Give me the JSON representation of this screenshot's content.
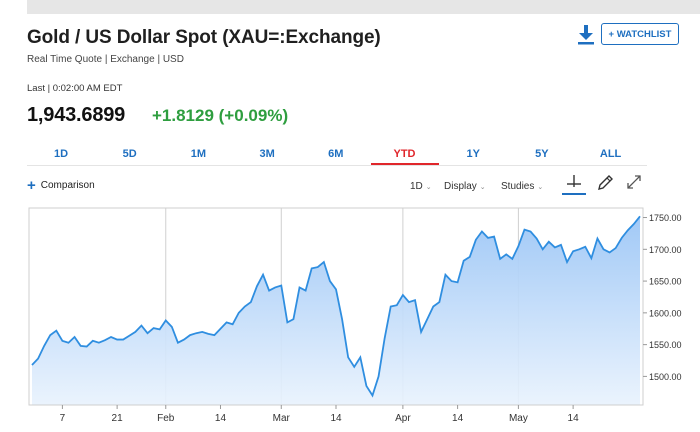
{
  "header": {
    "title": "Gold / US Dollar Spot (XAU=:Exchange)",
    "subtitle": "Real Time Quote | Exchange | USD",
    "watchlist_label": "+ WATCHLIST"
  },
  "quote": {
    "last_label": "Last | 0:02:00 AM EDT",
    "price": "1,943.6899",
    "change": "+1.8129 (+0.09%)",
    "change_color": "#2e9e3f"
  },
  "ranges": [
    {
      "label": "1D",
      "active": false
    },
    {
      "label": "5D",
      "active": false
    },
    {
      "label": "1M",
      "active": false
    },
    {
      "label": "3M",
      "active": false
    },
    {
      "label": "6M",
      "active": false
    },
    {
      "label": "YTD",
      "active": true
    },
    {
      "label": "1Y",
      "active": false
    },
    {
      "label": "5Y",
      "active": false
    },
    {
      "label": "ALL",
      "active": false
    }
  ],
  "toolbar": {
    "comparison_label": "Comparison",
    "interval_label": "1D",
    "display_label": "Display",
    "studies_label": "Studies"
  },
  "icons": {
    "download": "download-icon",
    "crosshair": "crosshair-icon",
    "draw": "pencil-icon",
    "expand": "expand-icon"
  },
  "chart_data": {
    "type": "area",
    "y_ticks": [
      "1500.00",
      "1550.00",
      "1600.00",
      "1650.00",
      "1700.00",
      "1750.00"
    ],
    "y_tick_values": [
      1500,
      1550,
      1600,
      1650,
      1700,
      1750
    ],
    "ylim": [
      1455,
      1765
    ],
    "x_ticks": [
      {
        "label": "7",
        "index": 5
      },
      {
        "label": "21",
        "index": 14
      },
      {
        "label": "Feb",
        "index": 22
      },
      {
        "label": "14",
        "index": 31
      },
      {
        "label": "Mar",
        "index": 41
      },
      {
        "label": "14",
        "index": 50
      },
      {
        "label": "Apr",
        "index": 61
      },
      {
        "label": "14",
        "index": 70
      },
      {
        "label": "May",
        "index": 80
      },
      {
        "label": "14",
        "index": 89
      }
    ],
    "vertical_gridline_indices": [
      22,
      41,
      61,
      80
    ],
    "line_color": "#2f8ee0",
    "fill_color": "#bcd9fa",
    "values": [
      1518,
      1528,
      1548,
      1565,
      1572,
      1556,
      1553,
      1562,
      1548,
      1547,
      1556,
      1553,
      1557,
      1562,
      1558,
      1558,
      1564,
      1570,
      1580,
      1568,
      1576,
      1574,
      1588,
      1578,
      1553,
      1558,
      1565,
      1568,
      1570,
      1567,
      1565,
      1575,
      1585,
      1582,
      1600,
      1610,
      1617,
      1642,
      1660,
      1635,
      1640,
      1643,
      1585,
      1590,
      1640,
      1635,
      1670,
      1672,
      1680,
      1650,
      1637,
      1590,
      1530,
      1515,
      1530,
      1485,
      1470,
      1500,
      1560,
      1610,
      1612,
      1628,
      1617,
      1620,
      1570,
      1590,
      1610,
      1617,
      1660,
      1650,
      1648,
      1682,
      1688,
      1715,
      1728,
      1718,
      1720,
      1685,
      1692,
      1685,
      1705,
      1731,
      1728,
      1717,
      1700,
      1712,
      1703,
      1707,
      1680,
      1697,
      1700,
      1704,
      1686,
      1717,
      1700,
      1695,
      1702,
      1718,
      1730,
      1740,
      1752
    ]
  }
}
